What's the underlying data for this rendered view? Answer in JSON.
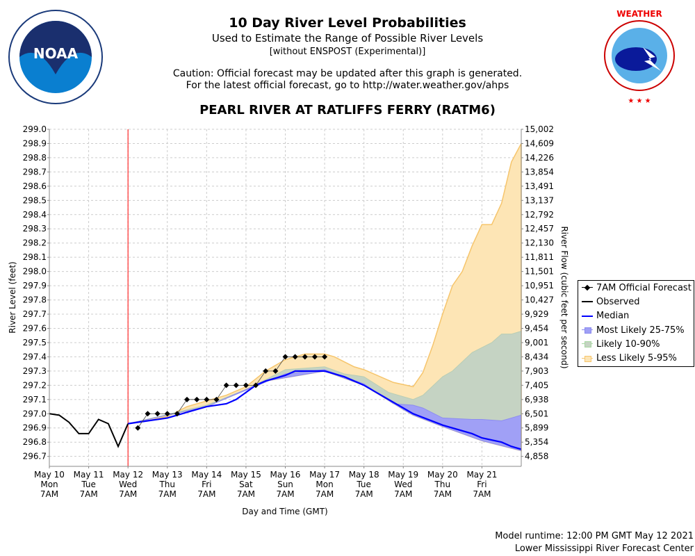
{
  "header": {
    "title": "10 Day River Level Probabilities",
    "subtitle": "Used to Estimate the Range of Possible River Levels",
    "subtitle2": "[without ENSPOST (Experimental)]",
    "caution1": "Caution: Official forecast may be updated after this graph is generated.",
    "caution2": "For the latest official forecast, go to http://water.weather.gov/ahps",
    "station": "PEARL RIVER AT RATLIFFS FERRY (RATM6)"
  },
  "logos": {
    "left": {
      "text": "NOAA",
      "ring": "NATIONAL OCEANIC AND ATMOSPHERIC ADMINISTRATION · U.S. DEPARTMENT OF COMMERCE"
    },
    "right": {
      "text": "NATIONAL WEATHER SERVICE"
    }
  },
  "footer": {
    "runtime": "Model runtime: 12:00 PM GMT May 12 2021",
    "center": "Lower Mississippi River Forecast Center"
  },
  "colors": {
    "observed": "#000000",
    "median": "#0000ff",
    "forecast": "#000000",
    "band_25_75": "#a0a0f6",
    "band_10_90": "#c5d3c3",
    "band_5_95": "#fde5b5",
    "band_5_95_edge": "#f6c56c",
    "issue_line": "#ff0000"
  },
  "chart_data": {
    "type": "area",
    "xlabel": "Day and Time (GMT)",
    "ylabel": "River Level (feet)",
    "y2label": "River Flow (cubic feet per second)",
    "xlim": [
      "05/10 12",
      "05/22 12"
    ],
    "ylim": [
      296.63,
      299.0
    ],
    "grid": true,
    "legend_position": "right",
    "issue_time": "05/12 12",
    "x_ticks": [
      {
        "date": "May 10",
        "day": "Mon",
        "time": "7AM"
      },
      {
        "date": "May 11",
        "day": "Tue",
        "time": "7AM"
      },
      {
        "date": "May 12",
        "day": "Wed",
        "time": "7AM"
      },
      {
        "date": "May 13",
        "day": "Thu",
        "time": "7AM"
      },
      {
        "date": "May 14",
        "day": "Fri",
        "time": "7AM"
      },
      {
        "date": "May 15",
        "day": "Sat",
        "time": "7AM"
      },
      {
        "date": "May 16",
        "day": "Sun",
        "time": "7AM"
      },
      {
        "date": "May 17",
        "day": "Mon",
        "time": "7AM"
      },
      {
        "date": "May 18",
        "day": "Tue",
        "time": "7AM"
      },
      {
        "date": "May 19",
        "day": "Wed",
        "time": "7AM"
      },
      {
        "date": "May 20",
        "day": "Thu",
        "time": "7AM"
      },
      {
        "date": "May 21",
        "day": "Fri",
        "time": "7AM"
      }
    ],
    "y_ticks": [
      "296.7",
      "296.8",
      "296.9",
      "297.0",
      "297.1",
      "297.2",
      "297.3",
      "297.4",
      "297.5",
      "297.6",
      "297.7",
      "297.8",
      "297.9",
      "298.0",
      "298.1",
      "298.2",
      "298.3",
      "298.4",
      "298.5",
      "298.6",
      "298.7",
      "298.8",
      "298.9",
      "299.0"
    ],
    "y2_ticks": [
      "4,858",
      "5,354",
      "5,899",
      "6,501",
      "6,938",
      "7,405",
      "7,903",
      "8,434",
      "9,001",
      "9,454",
      "9,929",
      "10,427",
      "10,951",
      "11,501",
      "11,811",
      "12,130",
      "12,457",
      "12,792",
      "13,137",
      "13,491",
      "13,854",
      "14,226",
      "14,609",
      "15,002"
    ],
    "legend": [
      "7AM Official Forecast",
      "Observed",
      "Median",
      "Most Likely 25-75%",
      "Likely 10-90%",
      "Less Likely 5-95%"
    ],
    "observed": [
      [
        "05/10 12",
        297.0
      ],
      [
        "05/10 18",
        296.99
      ],
      [
        "05/11 00",
        296.94
      ],
      [
        "05/11 06",
        296.86
      ],
      [
        "05/11 12",
        296.86
      ],
      [
        "05/11 18",
        296.96
      ],
      [
        "05/12 00",
        296.93
      ],
      [
        "05/12 06",
        296.77
      ],
      [
        "05/12 12",
        296.93
      ]
    ],
    "forecast": [
      [
        "05/12 18",
        296.9
      ],
      [
        "05/13 00",
        297.0
      ],
      [
        "05/13 06",
        297.0
      ],
      [
        "05/13 12",
        297.0
      ],
      [
        "05/13 18",
        297.0
      ],
      [
        "05/14 00",
        297.1
      ],
      [
        "05/14 06",
        297.1
      ],
      [
        "05/14 12",
        297.1
      ],
      [
        "05/14 18",
        297.1
      ],
      [
        "05/15 00",
        297.2
      ],
      [
        "05/15 06",
        297.2
      ],
      [
        "05/15 12",
        297.2
      ],
      [
        "05/15 18",
        297.2
      ],
      [
        "05/16 00",
        297.3
      ],
      [
        "05/16 06",
        297.3
      ],
      [
        "05/16 12",
        297.4
      ],
      [
        "05/16 18",
        297.4
      ],
      [
        "05/17 00",
        297.4
      ],
      [
        "05/17 06",
        297.4
      ],
      [
        "05/17 12",
        297.4
      ]
    ],
    "median": [
      [
        "05/12 12",
        296.93
      ],
      [
        "05/13 00",
        296.95
      ],
      [
        "05/13 12",
        296.97
      ],
      [
        "05/14 00",
        297.01
      ],
      [
        "05/14 12",
        297.05
      ],
      [
        "05/15 00",
        297.07
      ],
      [
        "05/15 06",
        297.1
      ],
      [
        "05/15 12",
        297.15
      ],
      [
        "05/15 18",
        297.2
      ],
      [
        "05/16 00",
        297.23
      ],
      [
        "05/16 12",
        297.27
      ],
      [
        "05/16 18",
        297.3
      ],
      [
        "05/17 12",
        297.3
      ],
      [
        "05/18 00",
        297.26
      ],
      [
        "05/18 12",
        297.2
      ],
      [
        "05/18 18",
        297.16
      ],
      [
        "05/19 03",
        297.1
      ],
      [
        "05/19 12",
        297.04
      ],
      [
        "05/19 18",
        297.0
      ],
      [
        "05/20 12",
        296.92
      ],
      [
        "05/21 06",
        296.86
      ],
      [
        "05/21 12",
        296.83
      ],
      [
        "05/22 00",
        296.8
      ],
      [
        "05/22 06",
        296.77
      ],
      [
        "05/22 12",
        296.75
      ]
    ],
    "bands": {
      "lower": [
        [
          "05/12 12",
          296.93
        ],
        [
          "05/14 12",
          297.05
        ],
        [
          "05/16 00",
          297.23
        ],
        [
          "05/17 12",
          297.3
        ],
        [
          "05/18 12",
          297.2
        ],
        [
          "05/19 12",
          297.03
        ],
        [
          "05/19 18",
          296.99
        ],
        [
          "05/20 12",
          296.91
        ],
        [
          "05/21 12",
          296.81
        ],
        [
          "05/22 12",
          296.74
        ]
      ],
      "p5_95_upper": [
        [
          "05/12 12",
          296.93
        ],
        [
          "05/13 00",
          296.95
        ],
        [
          "05/13 12",
          296.98
        ],
        [
          "05/14 00",
          297.05
        ],
        [
          "05/14 12",
          297.09
        ],
        [
          "05/15 00",
          297.13
        ],
        [
          "05/15 12",
          297.19
        ],
        [
          "05/16 00",
          297.3
        ],
        [
          "05/16 12",
          297.38
        ],
        [
          "05/17 00",
          297.42
        ],
        [
          "05/17 12",
          297.42
        ],
        [
          "05/17 18",
          297.4
        ],
        [
          "05/18 06",
          297.33
        ],
        [
          "05/18 12",
          297.31
        ],
        [
          "05/19 06",
          297.22
        ],
        [
          "05/19 18",
          297.19
        ],
        [
          "05/20 00",
          297.29
        ],
        [
          "05/20 06",
          297.48
        ],
        [
          "05/20 12",
          297.7
        ],
        [
          "05/20 18",
          297.9
        ],
        [
          "05/21 00",
          298.0
        ],
        [
          "05/21 06",
          298.18
        ],
        [
          "05/21 12",
          298.33
        ],
        [
          "05/21 18",
          298.33
        ],
        [
          "05/22 00",
          298.48
        ],
        [
          "05/22 06",
          298.77
        ],
        [
          "05/22 12",
          298.9
        ]
      ],
      "p10_90_upper": [
        [
          "05/12 12",
          296.93
        ],
        [
          "05/14 12",
          297.06
        ],
        [
          "05/15 12",
          297.17
        ],
        [
          "05/16 12",
          297.31
        ],
        [
          "05/17 12",
          297.33
        ],
        [
          "05/18 00",
          297.28
        ],
        [
          "05/18 12",
          297.26
        ],
        [
          "05/19 03",
          297.15
        ],
        [
          "05/19 18",
          297.1
        ],
        [
          "05/20 00",
          297.13
        ],
        [
          "05/20 12",
          297.26
        ],
        [
          "05/20 18",
          297.3
        ],
        [
          "05/21 06",
          297.43
        ],
        [
          "05/21 18",
          297.5
        ],
        [
          "05/22 00",
          297.56
        ],
        [
          "05/22 06",
          297.56
        ],
        [
          "05/22 12",
          297.58
        ]
      ],
      "p25_75_upper": [
        [
          "05/12 12",
          296.93
        ],
        [
          "05/14 12",
          297.05
        ],
        [
          "05/16 12",
          297.28
        ],
        [
          "05/17 12",
          297.31
        ],
        [
          "05/18 12",
          297.21
        ],
        [
          "05/19 06",
          297.07
        ],
        [
          "05/19 18",
          297.06
        ],
        [
          "05/20 00",
          297.04
        ],
        [
          "05/20 12",
          296.97
        ],
        [
          "05/21 06",
          296.96
        ],
        [
          "05/21 12",
          296.96
        ],
        [
          "05/22 00",
          296.95
        ],
        [
          "05/22 06",
          296.97
        ],
        [
          "05/22 12",
          296.99
        ]
      ]
    }
  }
}
